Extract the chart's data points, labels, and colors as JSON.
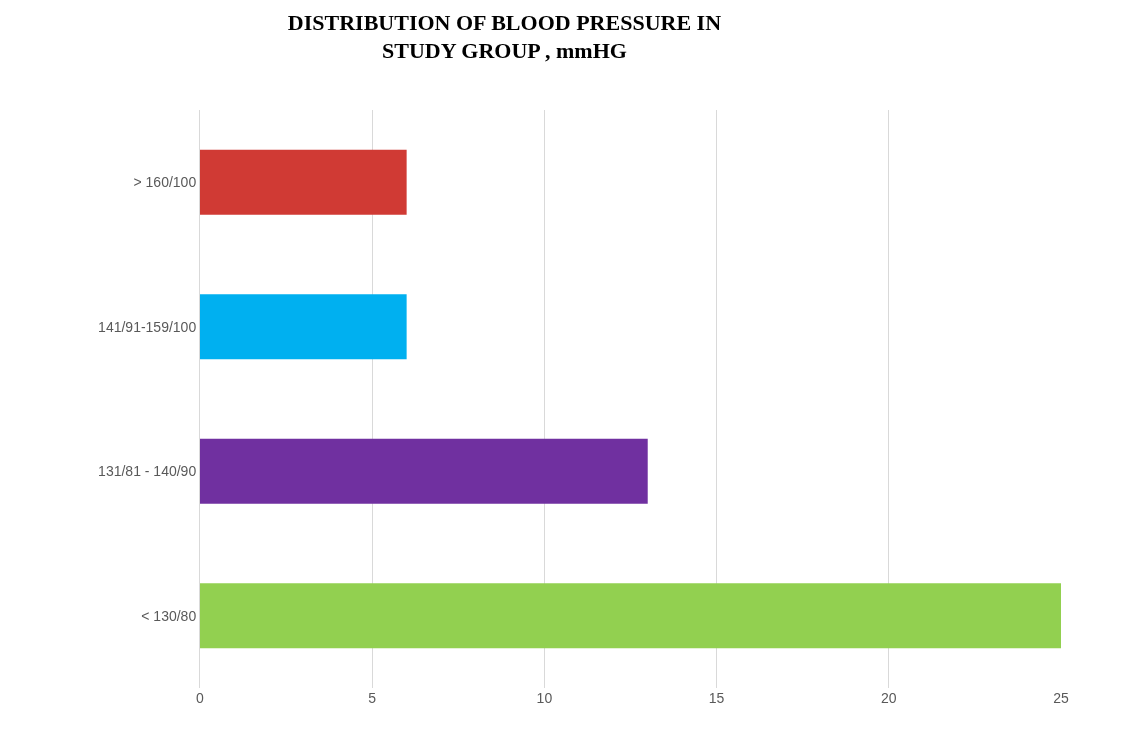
{
  "chart_data": {
    "type": "bar",
    "orientation": "horizontal",
    "title": "DISTRIBUTION OF BLOOD PRESSURE IN\nSTUDY GROUP , mmHG",
    "categories": [
      "> 160/100",
      "141/91-159/100",
      "131/81 - 140/90",
      "< 130/80"
    ],
    "values": [
      6,
      6,
      13,
      25
    ],
    "colors": [
      "#d03a34",
      "#00b0f0",
      "#7030a0",
      "#92d050"
    ],
    "xlim": [
      0,
      25
    ],
    "xticks": [
      0,
      5,
      10,
      15,
      20,
      25
    ],
    "grid": "x"
  }
}
